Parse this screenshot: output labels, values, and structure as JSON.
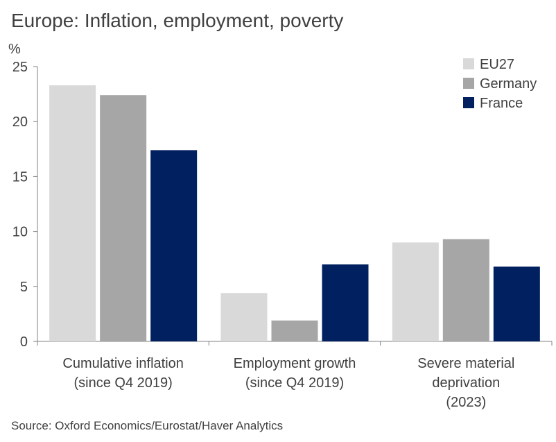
{
  "title": "Europe: Inflation, employment, poverty",
  "unit_label": "%",
  "source": "Source: Oxford Economics/Eurostat/Haver Analytics",
  "chart_data": {
    "type": "bar",
    "title": "Europe: Inflation, employment, poverty",
    "ylabel": "%",
    "xlabel": "",
    "ylim": [
      0,
      25
    ],
    "yticks": [
      0,
      5,
      10,
      15,
      20,
      25
    ],
    "categories": [
      [
        "Cumulative inflation",
        "(since Q4 2019)"
      ],
      [
        "Employment growth",
        "(since Q4 2019)"
      ],
      [
        "Severe material",
        "deprivation",
        "(2023)"
      ]
    ],
    "series": [
      {
        "name": "EU27",
        "color": "#d9d9d9",
        "values": [
          23.3,
          4.4,
          9.0
        ]
      },
      {
        "name": "Germany",
        "color": "#a6a6a6",
        "values": [
          22.4,
          1.9,
          9.3
        ]
      },
      {
        "name": "France",
        "color": "#002060",
        "values": [
          17.4,
          7.0,
          6.8
        ]
      }
    ],
    "legend_position": "top-right",
    "grid": false
  }
}
